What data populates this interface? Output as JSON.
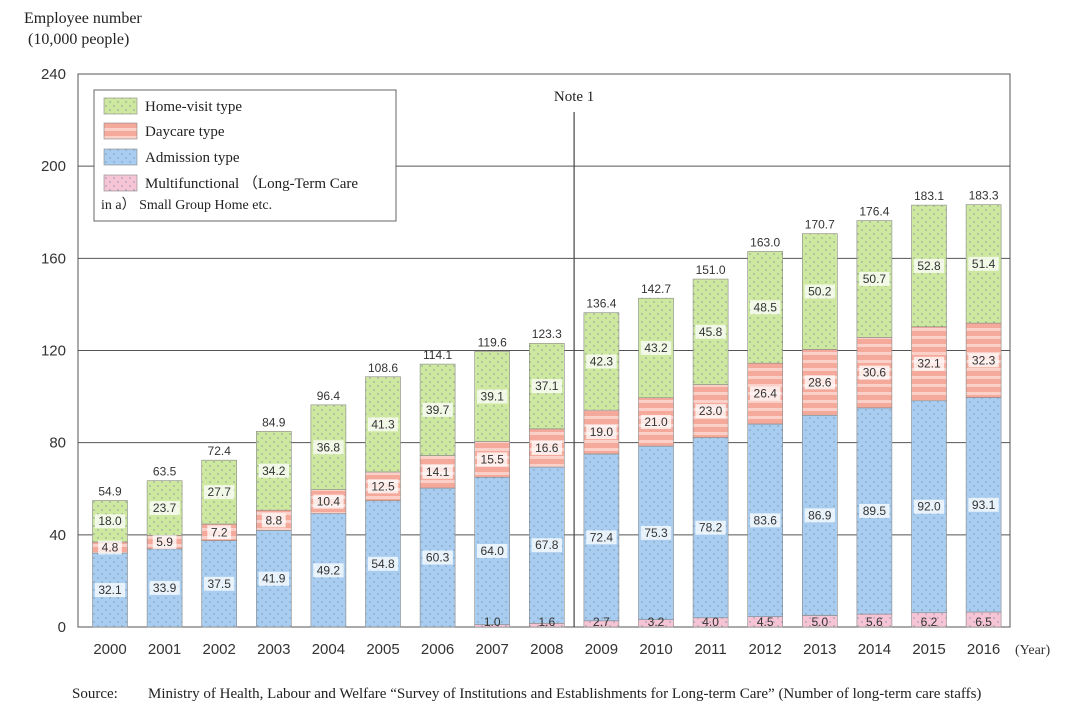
{
  "chart_data": {
    "type": "bar",
    "stacked": true,
    "ytitle_line1": "Employee number",
    "ytitle_line2": "(10,000 people)",
    "xunit": "(Year)",
    "ylim": [
      0,
      240
    ],
    "yticks": [
      "0",
      "40",
      "80",
      "120",
      "160",
      "200",
      "240"
    ],
    "categories": [
      "2000",
      "2001",
      "2002",
      "2003",
      "2004",
      "2005",
      "2006",
      "2007",
      "2008",
      "2009",
      "2010",
      "2011",
      "2012",
      "2013",
      "2014",
      "2015",
      "2016"
    ],
    "note": "Note 1",
    "note_after_category": "2008",
    "legend_position": "top-left",
    "grid": true,
    "series": [
      {
        "name": "Multifunctional (Long-Term Care in a) Small Group Home etc.",
        "legend_line1": "Multifunctional （Long-Term Care",
        "legend_line2": "in a）  Small Group Home etc.",
        "color": "#f7c4d6",
        "values": [
          0,
          0,
          0,
          0,
          0,
          0,
          0,
          1.0,
          1.6,
          2.7,
          3.2,
          4.0,
          4.5,
          5.0,
          5.6,
          6.2,
          6.5
        ],
        "labels": [
          "",
          "",
          "",
          "",
          "",
          "",
          "",
          "1.0",
          "1.6",
          "2.7",
          "3.2",
          "4.0",
          "4.5",
          "5.0",
          "5.6",
          "6.2",
          "6.5"
        ]
      },
      {
        "name": "Admission type",
        "color": "#a9cdf0",
        "values": [
          32.1,
          33.9,
          37.5,
          41.9,
          49.2,
          54.8,
          60.3,
          64.0,
          67.8,
          72.4,
          75.3,
          78.2,
          83.6,
          86.9,
          89.5,
          92.0,
          93.1
        ],
        "labels": [
          "32.1",
          "33.9",
          "37.5",
          "41.9",
          "49.2",
          "54.8",
          "60.3",
          "64.0",
          "67.8",
          "72.4",
          "75.3",
          "78.2",
          "83.6",
          "86.9",
          "89.5",
          "92.0",
          "93.1"
        ]
      },
      {
        "name": "Daycare type",
        "color": "#f5a99a",
        "values": [
          4.8,
          5.9,
          7.2,
          8.8,
          10.4,
          12.5,
          14.1,
          15.5,
          16.6,
          19.0,
          21.0,
          23.0,
          26.4,
          28.6,
          30.6,
          32.1,
          32.3
        ],
        "labels": [
          "4.8",
          "5.9",
          "7.2",
          "8.8",
          "10.4",
          "12.5",
          "14.1",
          "15.5",
          "16.6",
          "19.0",
          "21.0",
          "23.0",
          "26.4",
          "28.6",
          "30.6",
          "32.1",
          "32.3"
        ]
      },
      {
        "name": "Home-visit type",
        "color": "#cfe8a0",
        "values": [
          18.0,
          23.7,
          27.7,
          34.2,
          36.8,
          41.3,
          39.7,
          39.1,
          37.1,
          42.3,
          43.2,
          45.8,
          48.5,
          50.2,
          50.7,
          52.8,
          51.4
        ],
        "labels": [
          "18.0",
          "23.7",
          "27.7",
          "34.2",
          "36.8",
          "41.3",
          "39.7",
          "39.1",
          "37.1",
          "42.3",
          "43.2",
          "45.8",
          "48.5",
          "50.2",
          "50.7",
          "52.8",
          "51.4"
        ]
      }
    ],
    "totals": [
      "54.9",
      "63.5",
      "72.4",
      "84.9",
      "96.4",
      "108.6",
      "114.1",
      "119.6",
      "123.3",
      "136.4",
      "142.7",
      "151.0",
      "163.0",
      "170.7",
      "176.4",
      "183.1",
      "183.3"
    ]
  },
  "source": {
    "label": "Source:",
    "text": "Ministry of Health, Labour and Welfare “Survey of Institutions and Establishments for Long-term Care” (Number of long-term care staffs)"
  }
}
